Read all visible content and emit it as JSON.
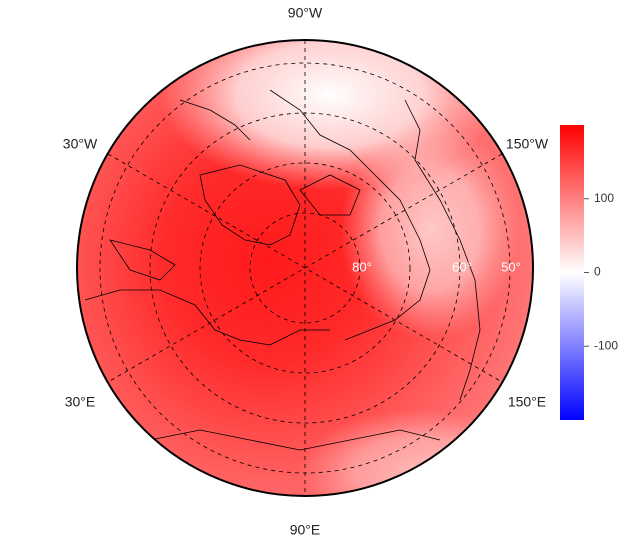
{
  "map": {
    "lon_labels": [
      "90°W",
      "30°W",
      "150°W",
      "30°E",
      "150°E",
      "90°E"
    ],
    "lat_labels": [
      "80°",
      "60°",
      "50°"
    ],
    "colorbar": {
      "lim": [
        -200,
        200
      ],
      "ticks": [
        -100,
        0,
        100
      ]
    }
  }
}
